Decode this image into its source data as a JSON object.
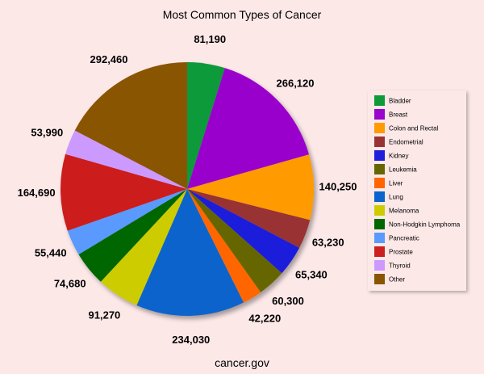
{
  "chart_data": {
    "type": "pie",
    "title": "Most Common Types of Cancer",
    "source": "cancer.gov",
    "legend_position": "right",
    "slices": [
      {
        "label": "Bladder",
        "value": 81190,
        "display": "81,190",
        "color": "#0e9a3a"
      },
      {
        "label": "Breast",
        "value": 266120,
        "display": "266,120",
        "color": "#9a06cc"
      },
      {
        "label": "Colon and Rectal",
        "value": 140250,
        "display": "140,250",
        "color": "#ff9a00"
      },
      {
        "label": "Endometrial",
        "value": 63230,
        "display": "63,230",
        "color": "#993333"
      },
      {
        "label": "Kidney",
        "value": 65340,
        "display": "65,340",
        "color": "#1e1edb"
      },
      {
        "label": "Leukemia",
        "value": 60300,
        "display": "60,300",
        "color": "#666600"
      },
      {
        "label": "Liver",
        "value": 42220,
        "display": "42,220",
        "color": "#ff6600"
      },
      {
        "label": "Lung",
        "value": 234030,
        "display": "234,030",
        "color": "#0a64cc"
      },
      {
        "label": "Melanoma",
        "value": 91270,
        "display": "91,270",
        "color": "#cccc00"
      },
      {
        "label": "Non-Hodgkin Lymphoma",
        "value": 74680,
        "display": "74,680",
        "color": "#006600"
      },
      {
        "label": "Pancreatic",
        "value": 55440,
        "display": "55,440",
        "color": "#5a9aff"
      },
      {
        "label": "Prostate",
        "value": 164690,
        "display": "164,690",
        "color": "#cc1f1f"
      },
      {
        "label": "Thyroid",
        "value": 53990,
        "display": "53,990",
        "color": "#cc99ff"
      },
      {
        "label": "Other",
        "value": 292460,
        "display": "292,460",
        "color": "#8a5500"
      }
    ]
  }
}
